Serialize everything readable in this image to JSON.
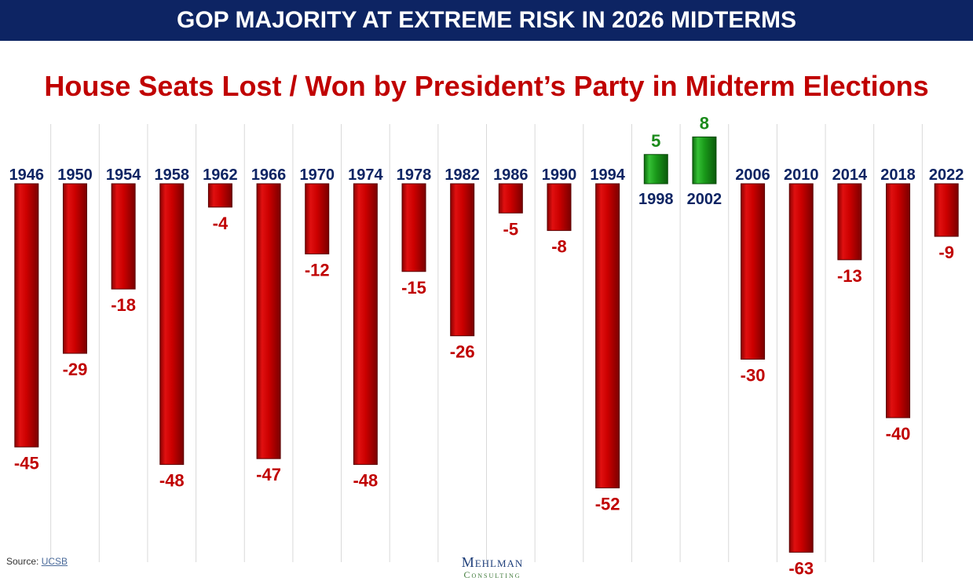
{
  "banner": {
    "title": "GOP MAJORITY AT EXTREME RISK IN 2026 MIDTERMS"
  },
  "chart_data": {
    "type": "bar",
    "title": "House Seats Lost / Won by President’s Party in Midterm Elections",
    "categories": [
      "1946",
      "1950",
      "1954",
      "1958",
      "1962",
      "1966",
      "1970",
      "1974",
      "1978",
      "1982",
      "1986",
      "1990",
      "1994",
      "1998",
      "2002",
      "2006",
      "2010",
      "2014",
      "2018",
      "2022"
    ],
    "values": [
      -45,
      -29,
      -18,
      -48,
      -4,
      -47,
      -12,
      -48,
      -15,
      -26,
      -5,
      -8,
      -52,
      5,
      8,
      -30,
      -63,
      -13,
      -40,
      -9
    ],
    "value_labels": [
      "-45",
      "-29",
      "-18",
      "-48",
      "-4",
      "-47",
      "-12",
      "-48",
      "-15",
      "-26",
      "-5",
      "-8",
      "-52",
      "5",
      "8",
      "-30",
      "-63",
      "-13",
      "-40",
      "-9"
    ],
    "xlabel": "",
    "ylabel": "",
    "grid": true,
    "colors": {
      "loss": "#cc0000",
      "gain": "#1a9a1a",
      "year_label": "#0d2463",
      "loss_label": "#c00000",
      "gain_label": "#1a8a1a",
      "grid": "#d9d9d9"
    }
  },
  "footer": {
    "source_prefix": "Source:",
    "source_link": "UCSB",
    "logo_line1": "Mehlman",
    "logo_line2": "Consulting"
  }
}
